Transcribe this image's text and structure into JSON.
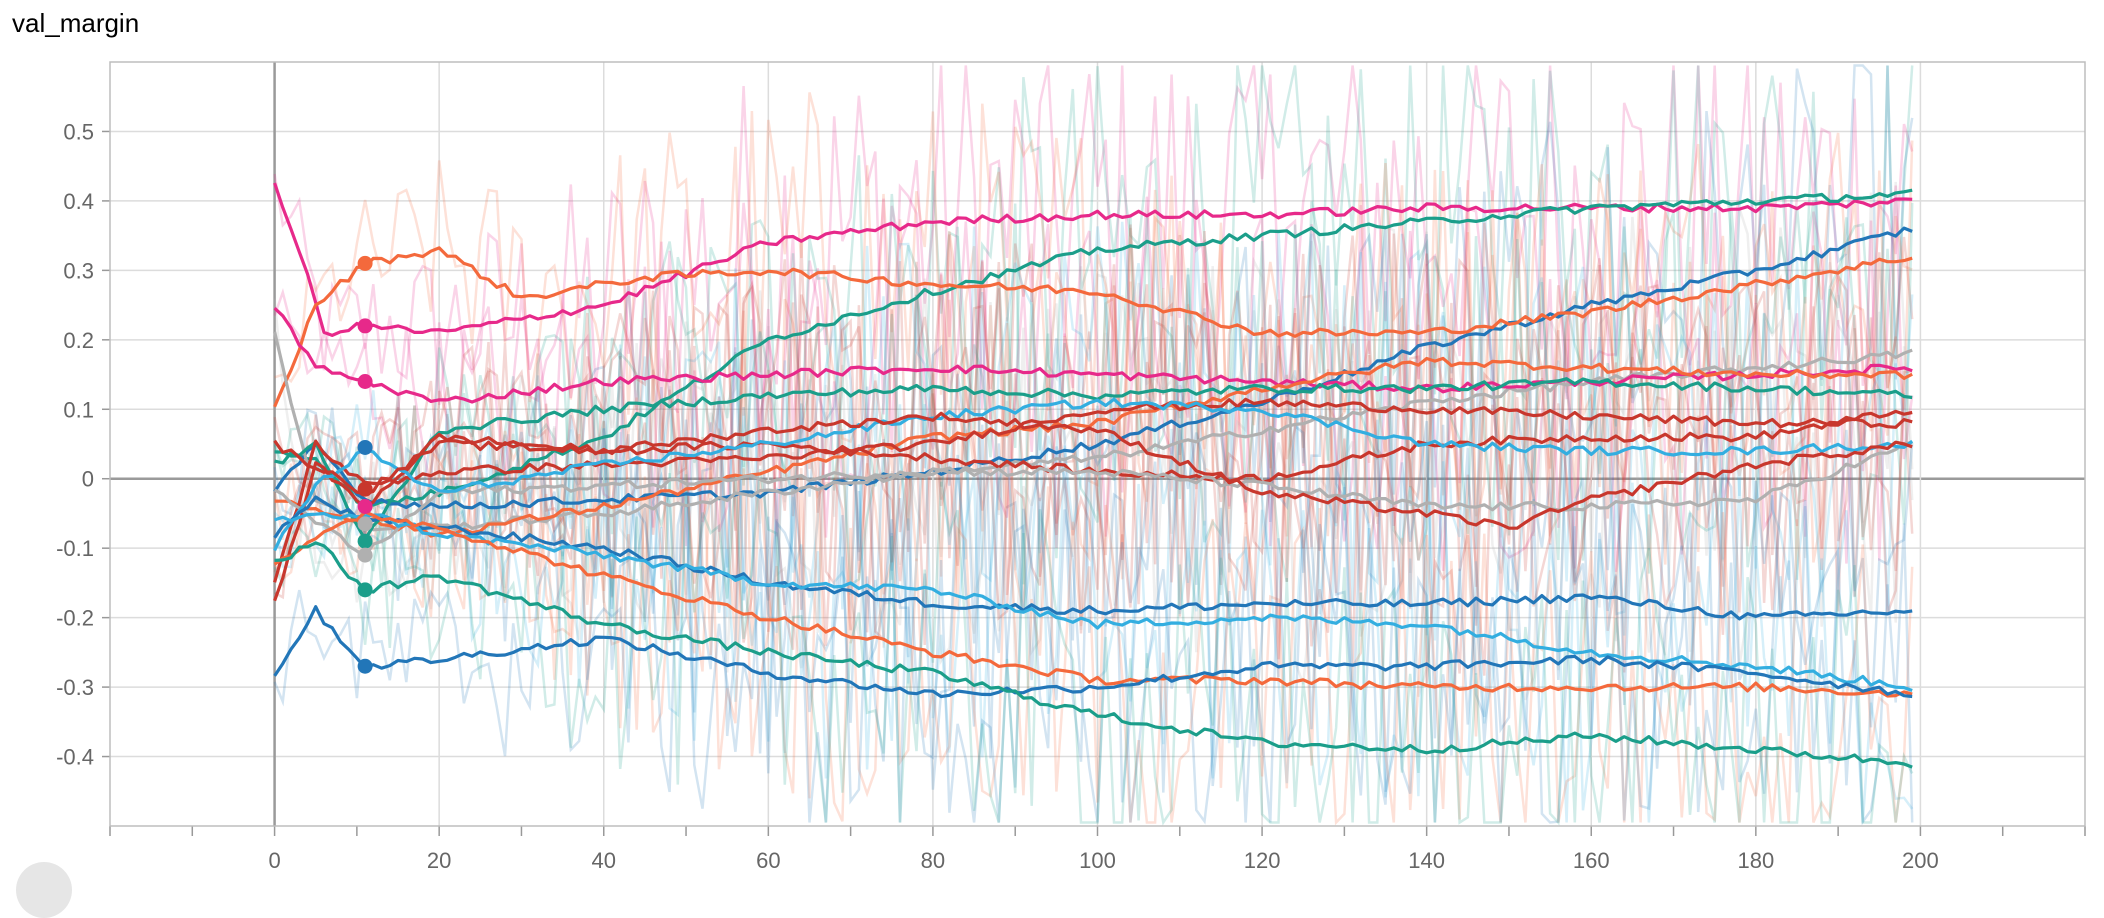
{
  "title": "val_margin",
  "chart_data": {
    "type": "line",
    "title": "val_margin",
    "xlabel": "",
    "ylabel": "",
    "xlim": [
      -20,
      220
    ],
    "ylim": [
      -0.5,
      0.6
    ],
    "x_ticks": [
      0,
      20,
      40,
      60,
      80,
      100,
      120,
      140,
      160,
      180,
      200
    ],
    "y_ticks": [
      0.5,
      0.4,
      0.3,
      0.2,
      0.1,
      0,
      -0.1,
      -0.2,
      -0.3,
      -0.4
    ],
    "y_tick_labels": [
      "0.5",
      "0.4",
      "0.3",
      "0.2",
      "0.1",
      "0",
      "-0.1",
      "-0.2",
      "-0.3",
      "-0.4"
    ],
    "grid": true,
    "legend": "none",
    "colors": {
      "pink": "#e7298a",
      "orange": "#f4693c",
      "teal": "#1b9e8a",
      "blue": "#2276b8",
      "light_blue": "#33aee0",
      "red": "#c8372d",
      "gray": "#b0b0b0"
    },
    "series": [
      {
        "color": "#e7298a",
        "values": [
          [
            0,
            0.42
          ],
          [
            3,
            0.33
          ],
          [
            6,
            0.21
          ],
          [
            11,
            0.22
          ],
          [
            20,
            0.21
          ],
          [
            40,
            0.25
          ],
          [
            60,
            0.34
          ],
          [
            80,
            0.37
          ],
          [
            100,
            0.38
          ],
          [
            120,
            0.38
          ],
          [
            140,
            0.39
          ],
          [
            160,
            0.39
          ],
          [
            180,
            0.39
          ],
          [
            199,
            0.4
          ]
        ]
      },
      {
        "color": "#1b9e8a",
        "values": [
          [
            0,
            0.04
          ],
          [
            5,
            0.03
          ],
          [
            11,
            -0.04
          ],
          [
            20,
            -0.02
          ],
          [
            40,
            0.06
          ],
          [
            60,
            0.2
          ],
          [
            80,
            0.27
          ],
          [
            100,
            0.33
          ],
          [
            120,
            0.35
          ],
          [
            140,
            0.37
          ],
          [
            160,
            0.39
          ],
          [
            180,
            0.4
          ],
          [
            199,
            0.41
          ]
        ]
      },
      {
        "color": "#2276b8",
        "values": [
          [
            0,
            -0.02
          ],
          [
            5,
            0.05
          ],
          [
            11,
            -0.03
          ],
          [
            20,
            -0.04
          ],
          [
            40,
            -0.03
          ],
          [
            60,
            -0.02
          ],
          [
            80,
            0.01
          ],
          [
            100,
            0.05
          ],
          [
            120,
            0.11
          ],
          [
            140,
            0.19
          ],
          [
            160,
            0.25
          ],
          [
            180,
            0.3
          ],
          [
            199,
            0.36
          ]
        ]
      },
      {
        "color": "#f4693c",
        "values": [
          [
            0,
            0.1
          ],
          [
            5,
            0.25
          ],
          [
            11,
            0.31
          ],
          [
            20,
            0.33
          ],
          [
            30,
            0.26
          ],
          [
            45,
            0.29
          ],
          [
            60,
            0.3
          ],
          [
            80,
            0.28
          ],
          [
            100,
            0.27
          ],
          [
            120,
            0.21
          ],
          [
            140,
            0.21
          ],
          [
            160,
            0.24
          ],
          [
            180,
            0.28
          ],
          [
            199,
            0.32
          ]
        ]
      },
      {
        "color": "#b0b0b0",
        "values": [
          [
            0,
            0.21
          ],
          [
            5,
            -0.03
          ],
          [
            11,
            -0.07
          ],
          [
            20,
            -0.07
          ],
          [
            40,
            -0.05
          ],
          [
            60,
            -0.02
          ],
          [
            80,
            0.01
          ],
          [
            100,
            0.03
          ],
          [
            120,
            0.07
          ],
          [
            140,
            0.11
          ],
          [
            160,
            0.14
          ],
          [
            180,
            0.16
          ],
          [
            199,
            0.18
          ]
        ]
      },
      {
        "color": "#e7298a",
        "values": [
          [
            0,
            0.25
          ],
          [
            5,
            0.16
          ],
          [
            11,
            0.14
          ],
          [
            20,
            0.11
          ],
          [
            40,
            0.14
          ],
          [
            60,
            0.15
          ],
          [
            80,
            0.16
          ],
          [
            100,
            0.15
          ],
          [
            120,
            0.14
          ],
          [
            140,
            0.13
          ],
          [
            160,
            0.14
          ],
          [
            180,
            0.15
          ],
          [
            199,
            0.16
          ]
        ]
      },
      {
        "color": "#f4693c",
        "values": [
          [
            0,
            -0.03
          ],
          [
            11,
            -0.06
          ],
          [
            20,
            -0.08
          ],
          [
            40,
            -0.04
          ],
          [
            60,
            0.01
          ],
          [
            80,
            0.06
          ],
          [
            100,
            0.08
          ],
          [
            120,
            0.13
          ],
          [
            140,
            0.17
          ],
          [
            160,
            0.16
          ],
          [
            180,
            0.15
          ],
          [
            199,
            0.15
          ]
        ]
      },
      {
        "color": "#1b9e8a",
        "values": [
          [
            0,
            0.02
          ],
          [
            5,
            0.05
          ],
          [
            11,
            -0.09
          ],
          [
            20,
            0.07
          ],
          [
            40,
            0.1
          ],
          [
            60,
            0.12
          ],
          [
            80,
            0.13
          ],
          [
            100,
            0.12
          ],
          [
            120,
            0.13
          ],
          [
            140,
            0.13
          ],
          [
            160,
            0.14
          ],
          [
            180,
            0.13
          ],
          [
            199,
            0.12
          ]
        ]
      },
      {
        "color": "#c8372d",
        "values": [
          [
            0,
            -0.15
          ],
          [
            5,
            0.05
          ],
          [
            11,
            -0.01
          ],
          [
            20,
            0.01
          ],
          [
            40,
            0.02
          ],
          [
            60,
            0.03
          ],
          [
            80,
            0.05
          ],
          [
            100,
            0.1
          ],
          [
            120,
            0.11
          ],
          [
            140,
            0.1
          ],
          [
            160,
            0.09
          ],
          [
            180,
            0.08
          ],
          [
            199,
            0.08
          ]
        ]
      },
      {
        "color": "#c8372d",
        "values": [
          [
            0,
            -0.18
          ],
          [
            5,
            0.02
          ],
          [
            11,
            -0.04
          ],
          [
            20,
            0.06
          ],
          [
            40,
            0.04
          ],
          [
            60,
            0.05
          ],
          [
            80,
            0.03
          ],
          [
            100,
            0.01
          ],
          [
            120,
            0.0
          ],
          [
            140,
            0.05
          ],
          [
            160,
            0.06
          ],
          [
            180,
            0.06
          ],
          [
            199,
            0.1
          ]
        ]
      },
      {
        "color": "#b0b0b0",
        "values": [
          [
            0,
            -0.02
          ],
          [
            11,
            -0.11
          ],
          [
            20,
            -0.02
          ],
          [
            40,
            -0.01
          ],
          [
            60,
            0.0
          ],
          [
            80,
            0.01
          ],
          [
            100,
            0.01
          ],
          [
            120,
            -0.01
          ],
          [
            140,
            -0.04
          ],
          [
            160,
            -0.04
          ],
          [
            180,
            -0.03
          ],
          [
            199,
            0.05
          ]
        ]
      },
      {
        "color": "#33aee0",
        "values": [
          [
            0,
            -0.1
          ],
          [
            5,
            -0.01
          ],
          [
            11,
            0.04
          ],
          [
            20,
            -0.02
          ],
          [
            40,
            0.02
          ],
          [
            60,
            0.05
          ],
          [
            80,
            0.09
          ],
          [
            100,
            0.11
          ],
          [
            120,
            0.1
          ],
          [
            140,
            0.05
          ],
          [
            160,
            0.04
          ],
          [
            180,
            0.04
          ],
          [
            199,
            0.05
          ]
        ]
      },
      {
        "color": "#c8372d",
        "values": [
          [
            0,
            0.05
          ],
          [
            11,
            -0.02
          ],
          [
            20,
            0.05
          ],
          [
            40,
            0.04
          ],
          [
            60,
            0.07
          ],
          [
            80,
            0.09
          ],
          [
            100,
            0.07
          ],
          [
            120,
            -0.02
          ],
          [
            140,
            -0.05
          ],
          [
            150,
            -0.07
          ],
          [
            160,
            -0.03
          ],
          [
            180,
            0.02
          ],
          [
            199,
            0.05
          ]
        ]
      },
      {
        "color": "#2276b8",
        "values": [
          [
            0,
            -0.08
          ],
          [
            5,
            -0.03
          ],
          [
            11,
            -0.06
          ],
          [
            20,
            -0.07
          ],
          [
            40,
            -0.1
          ],
          [
            60,
            -0.15
          ],
          [
            80,
            -0.18
          ],
          [
            100,
            -0.19
          ],
          [
            120,
            -0.18
          ],
          [
            140,
            -0.18
          ],
          [
            160,
            -0.17
          ],
          [
            180,
            -0.2
          ],
          [
            199,
            -0.19
          ]
        ]
      },
      {
        "color": "#33aee0",
        "values": [
          [
            0,
            -0.06
          ],
          [
            11,
            -0.05
          ],
          [
            20,
            -0.08
          ],
          [
            40,
            -0.11
          ],
          [
            60,
            -0.15
          ],
          [
            80,
            -0.16
          ],
          [
            100,
            -0.21
          ],
          [
            120,
            -0.2
          ],
          [
            140,
            -0.21
          ],
          [
            160,
            -0.25
          ],
          [
            180,
            -0.27
          ],
          [
            199,
            -0.3
          ]
        ]
      },
      {
        "color": "#f4693c",
        "values": [
          [
            0,
            -0.12
          ],
          [
            11,
            -0.05
          ],
          [
            20,
            -0.07
          ],
          [
            40,
            -0.14
          ],
          [
            60,
            -0.2
          ],
          [
            80,
            -0.25
          ],
          [
            100,
            -0.29
          ],
          [
            120,
            -0.29
          ],
          [
            140,
            -0.3
          ],
          [
            160,
            -0.3
          ],
          [
            180,
            -0.3
          ],
          [
            199,
            -0.31
          ]
        ]
      },
      {
        "color": "#2276b8",
        "values": [
          [
            0,
            -0.28
          ],
          [
            5,
            -0.19
          ],
          [
            11,
            -0.27
          ],
          [
            20,
            -0.26
          ],
          [
            40,
            -0.23
          ],
          [
            60,
            -0.28
          ],
          [
            80,
            -0.31
          ],
          [
            100,
            -0.3
          ],
          [
            120,
            -0.27
          ],
          [
            140,
            -0.27
          ],
          [
            160,
            -0.26
          ],
          [
            180,
            -0.28
          ],
          [
            199,
            -0.31
          ]
        ]
      },
      {
        "color": "#1b9e8a",
        "values": [
          [
            0,
            -0.12
          ],
          [
            5,
            -0.09
          ],
          [
            11,
            -0.16
          ],
          [
            20,
            -0.14
          ],
          [
            40,
            -0.21
          ],
          [
            60,
            -0.25
          ],
          [
            80,
            -0.28
          ],
          [
            100,
            -0.34
          ],
          [
            120,
            -0.38
          ],
          [
            140,
            -0.39
          ],
          [
            160,
            -0.37
          ],
          [
            180,
            -0.39
          ],
          [
            199,
            -0.41
          ]
        ]
      }
    ],
    "markers": [
      {
        "x": 11,
        "y": 0.31,
        "color": "#f4693c"
      },
      {
        "x": 11,
        "y": 0.22,
        "color": "#e7298a"
      },
      {
        "x": 11,
        "y": 0.14,
        "color": "#e7298a"
      },
      {
        "x": 11,
        "y": 0.045,
        "color": "#2276b8"
      },
      {
        "x": 11,
        "y": -0.015,
        "color": "#c8372d"
      },
      {
        "x": 11,
        "y": -0.04,
        "color": "#e7298a"
      },
      {
        "x": 11,
        "y": -0.065,
        "color": "#b0b0b0"
      },
      {
        "x": 11,
        "y": -0.09,
        "color": "#1b9e8a"
      },
      {
        "x": 11,
        "y": -0.11,
        "color": "#b0b0b0"
      },
      {
        "x": 11,
        "y": -0.16,
        "color": "#1b9e8a"
      },
      {
        "x": 11,
        "y": -0.27,
        "color": "#2276b8"
      }
    ]
  }
}
